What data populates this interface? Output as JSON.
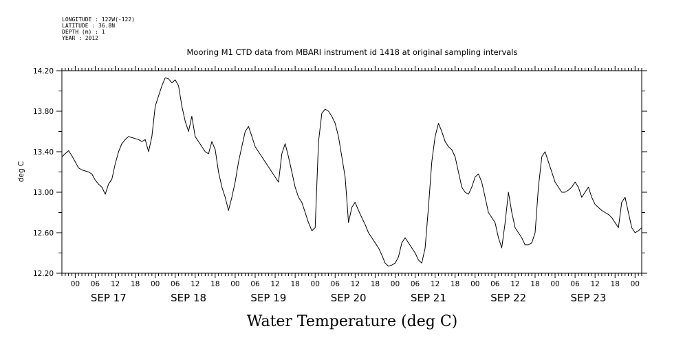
{
  "header": {
    "longitude": "LONGITUDE : 122W(-122)",
    "latitude": "LATITUDE : 36.8N",
    "depth": "DEPTH (m) : 1",
    "year": "YEAR : 2012"
  },
  "chart_data": {
    "type": "line",
    "title": "Mooring M1 CTD data from MBARI instrument id 1418 at original sampling intervals",
    "ylabel": "deg C",
    "xlabel": "Water Temperature (deg C)",
    "ylim": [
      12.2,
      14.2
    ],
    "yticks": [
      "12.20",
      "12.60",
      "13.00",
      "13.40",
      "13.80",
      "14.20"
    ],
    "xlim_hours": [
      -4,
      170
    ],
    "hour_tick_labels": [
      "00",
      "06",
      "12",
      "18"
    ],
    "day_labels": [
      "SEP 17",
      "SEP 18",
      "SEP 19",
      "SEP 20",
      "SEP 21",
      "SEP 22",
      "SEP 23"
    ],
    "grid": false,
    "series": [
      {
        "points": [
          [
            -4,
            13.35
          ],
          [
            -3,
            13.38
          ],
          [
            -2,
            13.41
          ],
          [
            -1,
            13.36
          ],
          [
            0,
            13.3
          ],
          [
            1,
            13.24
          ],
          [
            2,
            13.22
          ],
          [
            3,
            13.21
          ],
          [
            4,
            13.2
          ],
          [
            5,
            13.18
          ],
          [
            6,
            13.12
          ],
          [
            7,
            13.08
          ],
          [
            8,
            13.05
          ],
          [
            9,
            12.98
          ],
          [
            10,
            13.08
          ],
          [
            11,
            13.13
          ],
          [
            12,
            13.28
          ],
          [
            13,
            13.4
          ],
          [
            14,
            13.48
          ],
          [
            15,
            13.52
          ],
          [
            16,
            13.55
          ],
          [
            17,
            13.54
          ],
          [
            18,
            13.53
          ],
          [
            19,
            13.52
          ],
          [
            20,
            13.5
          ],
          [
            21,
            13.52
          ],
          [
            22,
            13.4
          ],
          [
            23,
            13.55
          ],
          [
            24,
            13.85
          ],
          [
            25,
            13.95
          ],
          [
            26,
            14.05
          ],
          [
            27,
            14.13
          ],
          [
            28,
            14.12
          ],
          [
            29,
            14.08
          ],
          [
            30,
            14.11
          ],
          [
            31,
            14.05
          ],
          [
            32,
            13.85
          ],
          [
            33,
            13.7
          ],
          [
            34,
            13.6
          ],
          [
            35,
            13.75
          ],
          [
            36,
            13.55
          ],
          [
            37,
            13.5
          ],
          [
            38,
            13.45
          ],
          [
            39,
            13.4
          ],
          [
            40,
            13.38
          ],
          [
            41,
            13.5
          ],
          [
            42,
            13.42
          ],
          [
            43,
            13.2
          ],
          [
            44,
            13.05
          ],
          [
            45,
            12.95
          ],
          [
            46,
            12.82
          ],
          [
            47,
            12.95
          ],
          [
            48,
            13.1
          ],
          [
            49,
            13.3
          ],
          [
            50,
            13.45
          ],
          [
            51,
            13.6
          ],
          [
            52,
            13.65
          ],
          [
            53,
            13.55
          ],
          [
            54,
            13.45
          ],
          [
            55,
            13.4
          ],
          [
            56,
            13.35
          ],
          [
            57,
            13.3
          ],
          [
            58,
            13.25
          ],
          [
            59,
            13.2
          ],
          [
            60,
            13.15
          ],
          [
            61,
            13.1
          ],
          [
            62,
            13.38
          ],
          [
            63,
            13.48
          ],
          [
            64,
            13.35
          ],
          [
            65,
            13.2
          ],
          [
            66,
            13.05
          ],
          [
            67,
            12.95
          ],
          [
            68,
            12.9
          ],
          [
            69,
            12.8
          ],
          [
            70,
            12.7
          ],
          [
            71,
            12.62
          ],
          [
            72,
            12.65
          ],
          [
            73,
            13.5
          ],
          [
            74,
            13.78
          ],
          [
            75,
            13.82
          ],
          [
            76,
            13.8
          ],
          [
            77,
            13.75
          ],
          [
            78,
            13.68
          ],
          [
            79,
            13.55
          ],
          [
            80,
            13.35
          ],
          [
            81,
            13.15
          ],
          [
            82,
            12.7
          ],
          [
            83,
            12.85
          ],
          [
            84,
            12.9
          ],
          [
            85,
            12.82
          ],
          [
            86,
            12.75
          ],
          [
            87,
            12.68
          ],
          [
            88,
            12.6
          ],
          [
            89,
            12.55
          ],
          [
            90,
            12.5
          ],
          [
            91,
            12.45
          ],
          [
            92,
            12.38
          ],
          [
            93,
            12.3
          ],
          [
            94,
            12.27
          ],
          [
            95,
            12.28
          ],
          [
            96,
            12.3
          ],
          [
            97,
            12.36
          ],
          [
            98,
            12.5
          ],
          [
            99,
            12.55
          ],
          [
            100,
            12.5
          ],
          [
            101,
            12.45
          ],
          [
            102,
            12.4
          ],
          [
            103,
            12.33
          ],
          [
            104,
            12.3
          ],
          [
            105,
            12.45
          ],
          [
            106,
            12.85
          ],
          [
            107,
            13.3
          ],
          [
            108,
            13.55
          ],
          [
            109,
            13.68
          ],
          [
            110,
            13.6
          ],
          [
            111,
            13.5
          ],
          [
            112,
            13.45
          ],
          [
            113,
            13.42
          ],
          [
            114,
            13.35
          ],
          [
            115,
            13.2
          ],
          [
            116,
            13.05
          ],
          [
            117,
            13.0
          ],
          [
            118,
            12.98
          ],
          [
            119,
            13.05
          ],
          [
            120,
            13.15
          ],
          [
            121,
            13.18
          ],
          [
            122,
            13.1
          ],
          [
            123,
            12.95
          ],
          [
            124,
            12.8
          ],
          [
            125,
            12.75
          ],
          [
            126,
            12.7
          ],
          [
            127,
            12.55
          ],
          [
            128,
            12.45
          ],
          [
            129,
            12.7
          ],
          [
            130,
            13.0
          ],
          [
            131,
            12.8
          ],
          [
            132,
            12.65
          ],
          [
            133,
            12.6
          ],
          [
            134,
            12.55
          ],
          [
            135,
            12.48
          ],
          [
            136,
            12.48
          ],
          [
            137,
            12.5
          ],
          [
            138,
            12.6
          ],
          [
            139,
            13.05
          ],
          [
            140,
            13.35
          ],
          [
            141,
            13.4
          ],
          [
            142,
            13.3
          ],
          [
            143,
            13.2
          ],
          [
            144,
            13.1
          ],
          [
            145,
            13.05
          ],
          [
            146,
            13.0
          ],
          [
            147,
            13.0
          ],
          [
            148,
            13.02
          ],
          [
            149,
            13.05
          ],
          [
            150,
            13.1
          ],
          [
            151,
            13.05
          ],
          [
            152,
            12.95
          ],
          [
            153,
            13.0
          ],
          [
            154,
            13.05
          ],
          [
            155,
            12.95
          ],
          [
            156,
            12.88
          ],
          [
            157,
            12.85
          ],
          [
            158,
            12.82
          ],
          [
            159,
            12.8
          ],
          [
            160,
            12.78
          ],
          [
            161,
            12.75
          ],
          [
            162,
            12.7
          ],
          [
            163,
            12.65
          ],
          [
            164,
            12.9
          ],
          [
            165,
            12.95
          ],
          [
            166,
            12.8
          ],
          [
            167,
            12.65
          ],
          [
            168,
            12.6
          ],
          [
            169,
            12.62
          ],
          [
            170,
            12.65
          ]
        ]
      }
    ]
  }
}
